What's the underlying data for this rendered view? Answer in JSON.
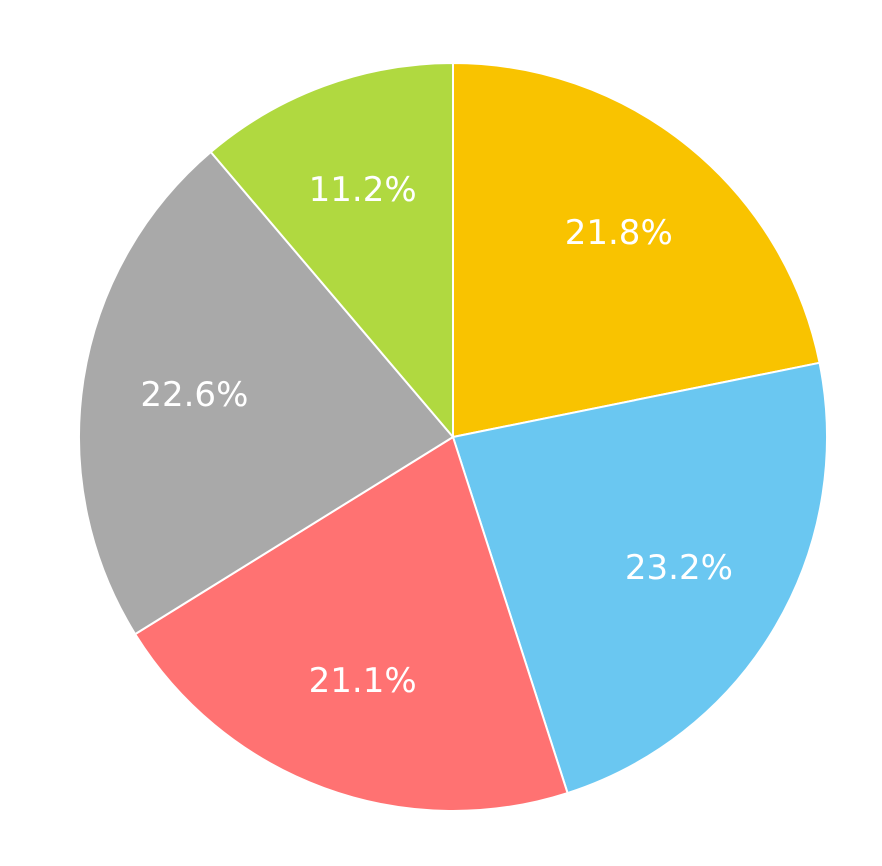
{
  "chart_data": {
    "type": "pie",
    "start_angle": "12 o'clock",
    "direction": "clockwise",
    "legend": "none",
    "slices": [
      {
        "label": "21.8%",
        "value": 21.8,
        "color": "#F9C300"
      },
      {
        "label": "23.2%",
        "value": 23.2,
        "color": "#6AC7F1"
      },
      {
        "label": "21.1%",
        "value": 21.1,
        "color": "#FF7272"
      },
      {
        "label": "22.6%",
        "value": 22.6,
        "color": "#A9A9A9"
      },
      {
        "label": "11.2%",
        "value": 11.2,
        "color": "#B0D940"
      }
    ]
  }
}
